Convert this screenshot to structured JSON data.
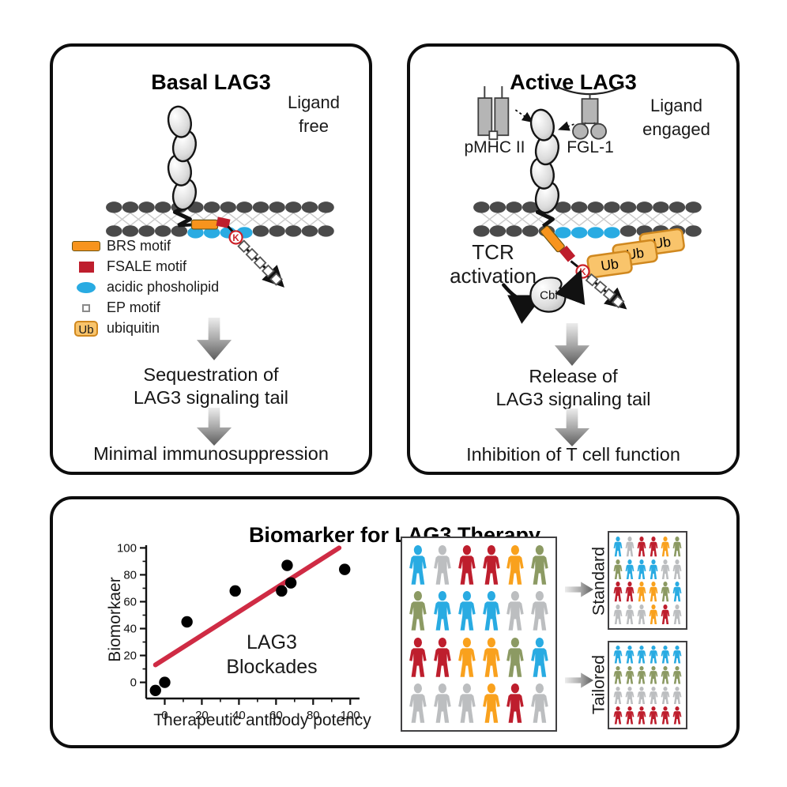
{
  "colors": {
    "person_blue": "#29abe2",
    "person_gray": "#bcbec0",
    "person_red": "#be1e2d",
    "person_orange": "#f9a11d",
    "person_olive": "#8c9a63",
    "brs_orange": "#f7941d",
    "fsale_red": "#be1e2d",
    "phospholipid_blue": "#29abe2",
    "ub_fill": "#f9c46b",
    "ub_border": "#d0881f",
    "membrane_head": "#4a4a4a",
    "membrane_tail": "#c9c9c9",
    "trend_red": "#cf2b44",
    "k_red": "#cc2229"
  },
  "basal_panel": {
    "title": "Basal LAG3",
    "ligand_state_line1": "Ligand",
    "ligand_state_line2": "free",
    "k_label": "K",
    "legend": [
      {
        "key": "brs",
        "label": "BRS motif"
      },
      {
        "key": "fsale",
        "label": "FSALE motif"
      },
      {
        "key": "phospholipid",
        "label": "acidic phosholipid"
      },
      {
        "key": "ep",
        "label": "EP motif"
      },
      {
        "key": "ub",
        "label": "ubiquitin",
        "swatch_text": "Ub"
      }
    ],
    "outcome1_line1": "Sequestration of",
    "outcome1_line2": "LAG3 signaling tail",
    "outcome2": "Minimal immunosuppression"
  },
  "active_panel": {
    "title": "Active LAG3",
    "ligand_state_line1": "Ligand",
    "ligand_state_line2": "engaged",
    "pmhc_label": "pMHC II",
    "fgl1_label": "FGL-1",
    "tcr_line1": "TCR",
    "tcr_line2": "activation",
    "cbl_label": "Cbl",
    "ub_label": "Ub",
    "k_label": "K",
    "outcome1_line1": "Release of",
    "outcome1_line2": "LAG3 signaling tail",
    "outcome2": "Inhibition of T cell function"
  },
  "biomarker_panel": {
    "title": "Biomarker for LAG3 Therapy",
    "standard_label": "Standard",
    "tailored_label": "Tailored",
    "chart_data": {
      "type": "scatter",
      "xlabel": "Therapeutic antibody potency",
      "ylabel": "Biomorkaer",
      "xlim": [
        -10,
        105
      ],
      "ylim": [
        -12,
        102
      ],
      "xticks": [
        0,
        20,
        40,
        60,
        80,
        100
      ],
      "yticks": [
        0,
        20,
        40,
        60,
        80,
        100
      ],
      "minor_xticks": [
        10,
        30,
        50,
        70,
        90
      ],
      "minor_yticks": [
        10,
        30,
        50,
        70,
        90
      ],
      "points": [
        [
          -5,
          -6
        ],
        [
          0,
          0
        ],
        [
          12,
          45
        ],
        [
          38,
          68
        ],
        [
          63,
          68
        ],
        [
          66,
          87
        ],
        [
          68,
          74
        ],
        [
          97,
          84
        ]
      ],
      "trend_line": {
        "x1": -5,
        "y1": 13,
        "x2": 94,
        "y2": 100
      },
      "annotation_line1": "LAG3",
      "annotation_line2": "Blockades",
      "grid": false,
      "legend_position": "none"
    },
    "population_grid": {
      "cols": 6,
      "cells": [
        "blue",
        "gray",
        "red",
        "red",
        "orange",
        "olive",
        "olive",
        "blue",
        "blue",
        "blue",
        "gray",
        "gray",
        "red",
        "red",
        "orange",
        "orange",
        "olive",
        "blue",
        "gray",
        "gray",
        "gray",
        "orange",
        "red",
        "gray"
      ]
    },
    "standard_grid": {
      "cols": 6,
      "cells": [
        "blue",
        "gray",
        "red",
        "red",
        "orange",
        "olive",
        "olive",
        "blue",
        "blue",
        "blue",
        "gray",
        "gray",
        "red",
        "red",
        "orange",
        "orange",
        "olive",
        "blue",
        "gray",
        "gray",
        "gray",
        "orange",
        "red",
        "gray"
      ]
    },
    "tailored_grid": {
      "cols": 6,
      "cells": [
        "blue",
        "blue",
        "blue",
        "blue",
        "blue",
        "blue",
        "olive",
        "olive",
        "olive",
        "olive",
        "olive",
        "olive",
        "gray",
        "gray",
        "gray",
        "gray",
        "gray",
        "gray",
        "red",
        "red",
        "red",
        "red",
        "red",
        "red"
      ]
    }
  }
}
